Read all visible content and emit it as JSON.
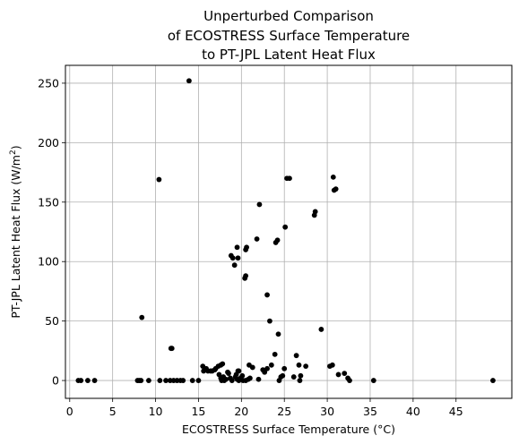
{
  "chart_data": {
    "type": "scatter",
    "title_lines": [
      "Unperturbed Comparison",
      "of ECOSTRESS Surface Temperature",
      "to PT-JPL Latent Heat Flux"
    ],
    "xlabel": "ECOSTRESS Surface Temperature (°C)",
    "ylabel_main": "PT-JPL Latent Heat Flux (W/m",
    "ylabel_sup": "2",
    "ylabel_end": ")",
    "xlim": [
      -0.5,
      51.5
    ],
    "ylim": [
      -15,
      265
    ],
    "xticks": [
      0,
      5,
      10,
      15,
      20,
      25,
      30,
      35,
      40,
      45
    ],
    "yticks": [
      0,
      50,
      100,
      150,
      200,
      250
    ],
    "grid": true,
    "marker_color": "#000000",
    "points": [
      [
        1.0,
        0
      ],
      [
        1.3,
        0
      ],
      [
        2.1,
        0
      ],
      [
        2.9,
        0
      ],
      [
        7.9,
        0
      ],
      [
        8.1,
        0
      ],
      [
        8.3,
        0
      ],
      [
        8.4,
        53
      ],
      [
        9.2,
        0
      ],
      [
        10.4,
        169
      ],
      [
        10.5,
        0
      ],
      [
        11.2,
        0
      ],
      [
        11.7,
        0
      ],
      [
        11.8,
        27
      ],
      [
        11.9,
        27
      ],
      [
        12.1,
        0
      ],
      [
        12.5,
        0
      ],
      [
        12.9,
        0
      ],
      [
        13.2,
        0
      ],
      [
        13.9,
        252
      ],
      [
        14.3,
        0
      ],
      [
        15.0,
        0
      ],
      [
        15.5,
        12
      ],
      [
        15.6,
        8
      ],
      [
        15.9,
        10
      ],
      [
        16.1,
        8
      ],
      [
        16.4,
        8
      ],
      [
        16.6,
        8
      ],
      [
        16.9,
        9
      ],
      [
        17.0,
        10
      ],
      [
        17.3,
        12
      ],
      [
        17.6,
        13
      ],
      [
        17.8,
        14
      ],
      [
        17.4,
        5
      ],
      [
        17.6,
        2
      ],
      [
        17.7,
        0
      ],
      [
        17.9,
        3
      ],
      [
        18.0,
        0
      ],
      [
        18.2,
        1
      ],
      [
        18.4,
        7
      ],
      [
        18.5,
        6
      ],
      [
        18.7,
        2
      ],
      [
        18.9,
        0
      ],
      [
        18.8,
        105
      ],
      [
        19.0,
        103
      ],
      [
        19.2,
        97
      ],
      [
        19.3,
        3
      ],
      [
        19.4,
        5
      ],
      [
        19.5,
        1
      ],
      [
        19.6,
        8
      ],
      [
        19.7,
        8
      ],
      [
        19.7,
        0
      ],
      [
        19.9,
        2
      ],
      [
        20.1,
        4
      ],
      [
        20.2,
        0
      ],
      [
        19.5,
        112
      ],
      [
        19.6,
        103
      ],
      [
        20.4,
        86
      ],
      [
        20.5,
        88
      ],
      [
        20.5,
        110
      ],
      [
        20.6,
        112
      ],
      [
        20.5,
        0
      ],
      [
        20.8,
        1
      ],
      [
        20.9,
        13
      ],
      [
        21.0,
        2
      ],
      [
        21.3,
        11
      ],
      [
        21.8,
        119
      ],
      [
        22.1,
        148
      ],
      [
        22.0,
        1
      ],
      [
        22.5,
        9
      ],
      [
        22.7,
        7
      ],
      [
        23.0,
        10
      ],
      [
        23.0,
        72
      ],
      [
        23.3,
        50
      ],
      [
        23.5,
        13
      ],
      [
        24.0,
        116
      ],
      [
        24.2,
        118
      ],
      [
        23.9,
        22
      ],
      [
        24.3,
        39
      ],
      [
        24.4,
        0
      ],
      [
        24.6,
        3
      ],
      [
        24.8,
        4
      ],
      [
        25.0,
        10
      ],
      [
        25.1,
        129
      ],
      [
        25.3,
        170
      ],
      [
        25.6,
        170
      ],
      [
        26.1,
        3
      ],
      [
        26.4,
        21
      ],
      [
        26.7,
        13
      ],
      [
        26.8,
        0
      ],
      [
        26.9,
        4
      ],
      [
        27.5,
        12
      ],
      [
        28.5,
        139
      ],
      [
        28.6,
        142
      ],
      [
        29.3,
        43
      ],
      [
        30.3,
        12
      ],
      [
        30.6,
        13
      ],
      [
        30.7,
        171
      ],
      [
        30.8,
        160
      ],
      [
        31.0,
        161
      ],
      [
        31.3,
        5
      ],
      [
        32.0,
        6
      ],
      [
        32.4,
        2
      ],
      [
        32.6,
        0
      ],
      [
        35.4,
        0
      ],
      [
        49.3,
        0
      ]
    ]
  }
}
